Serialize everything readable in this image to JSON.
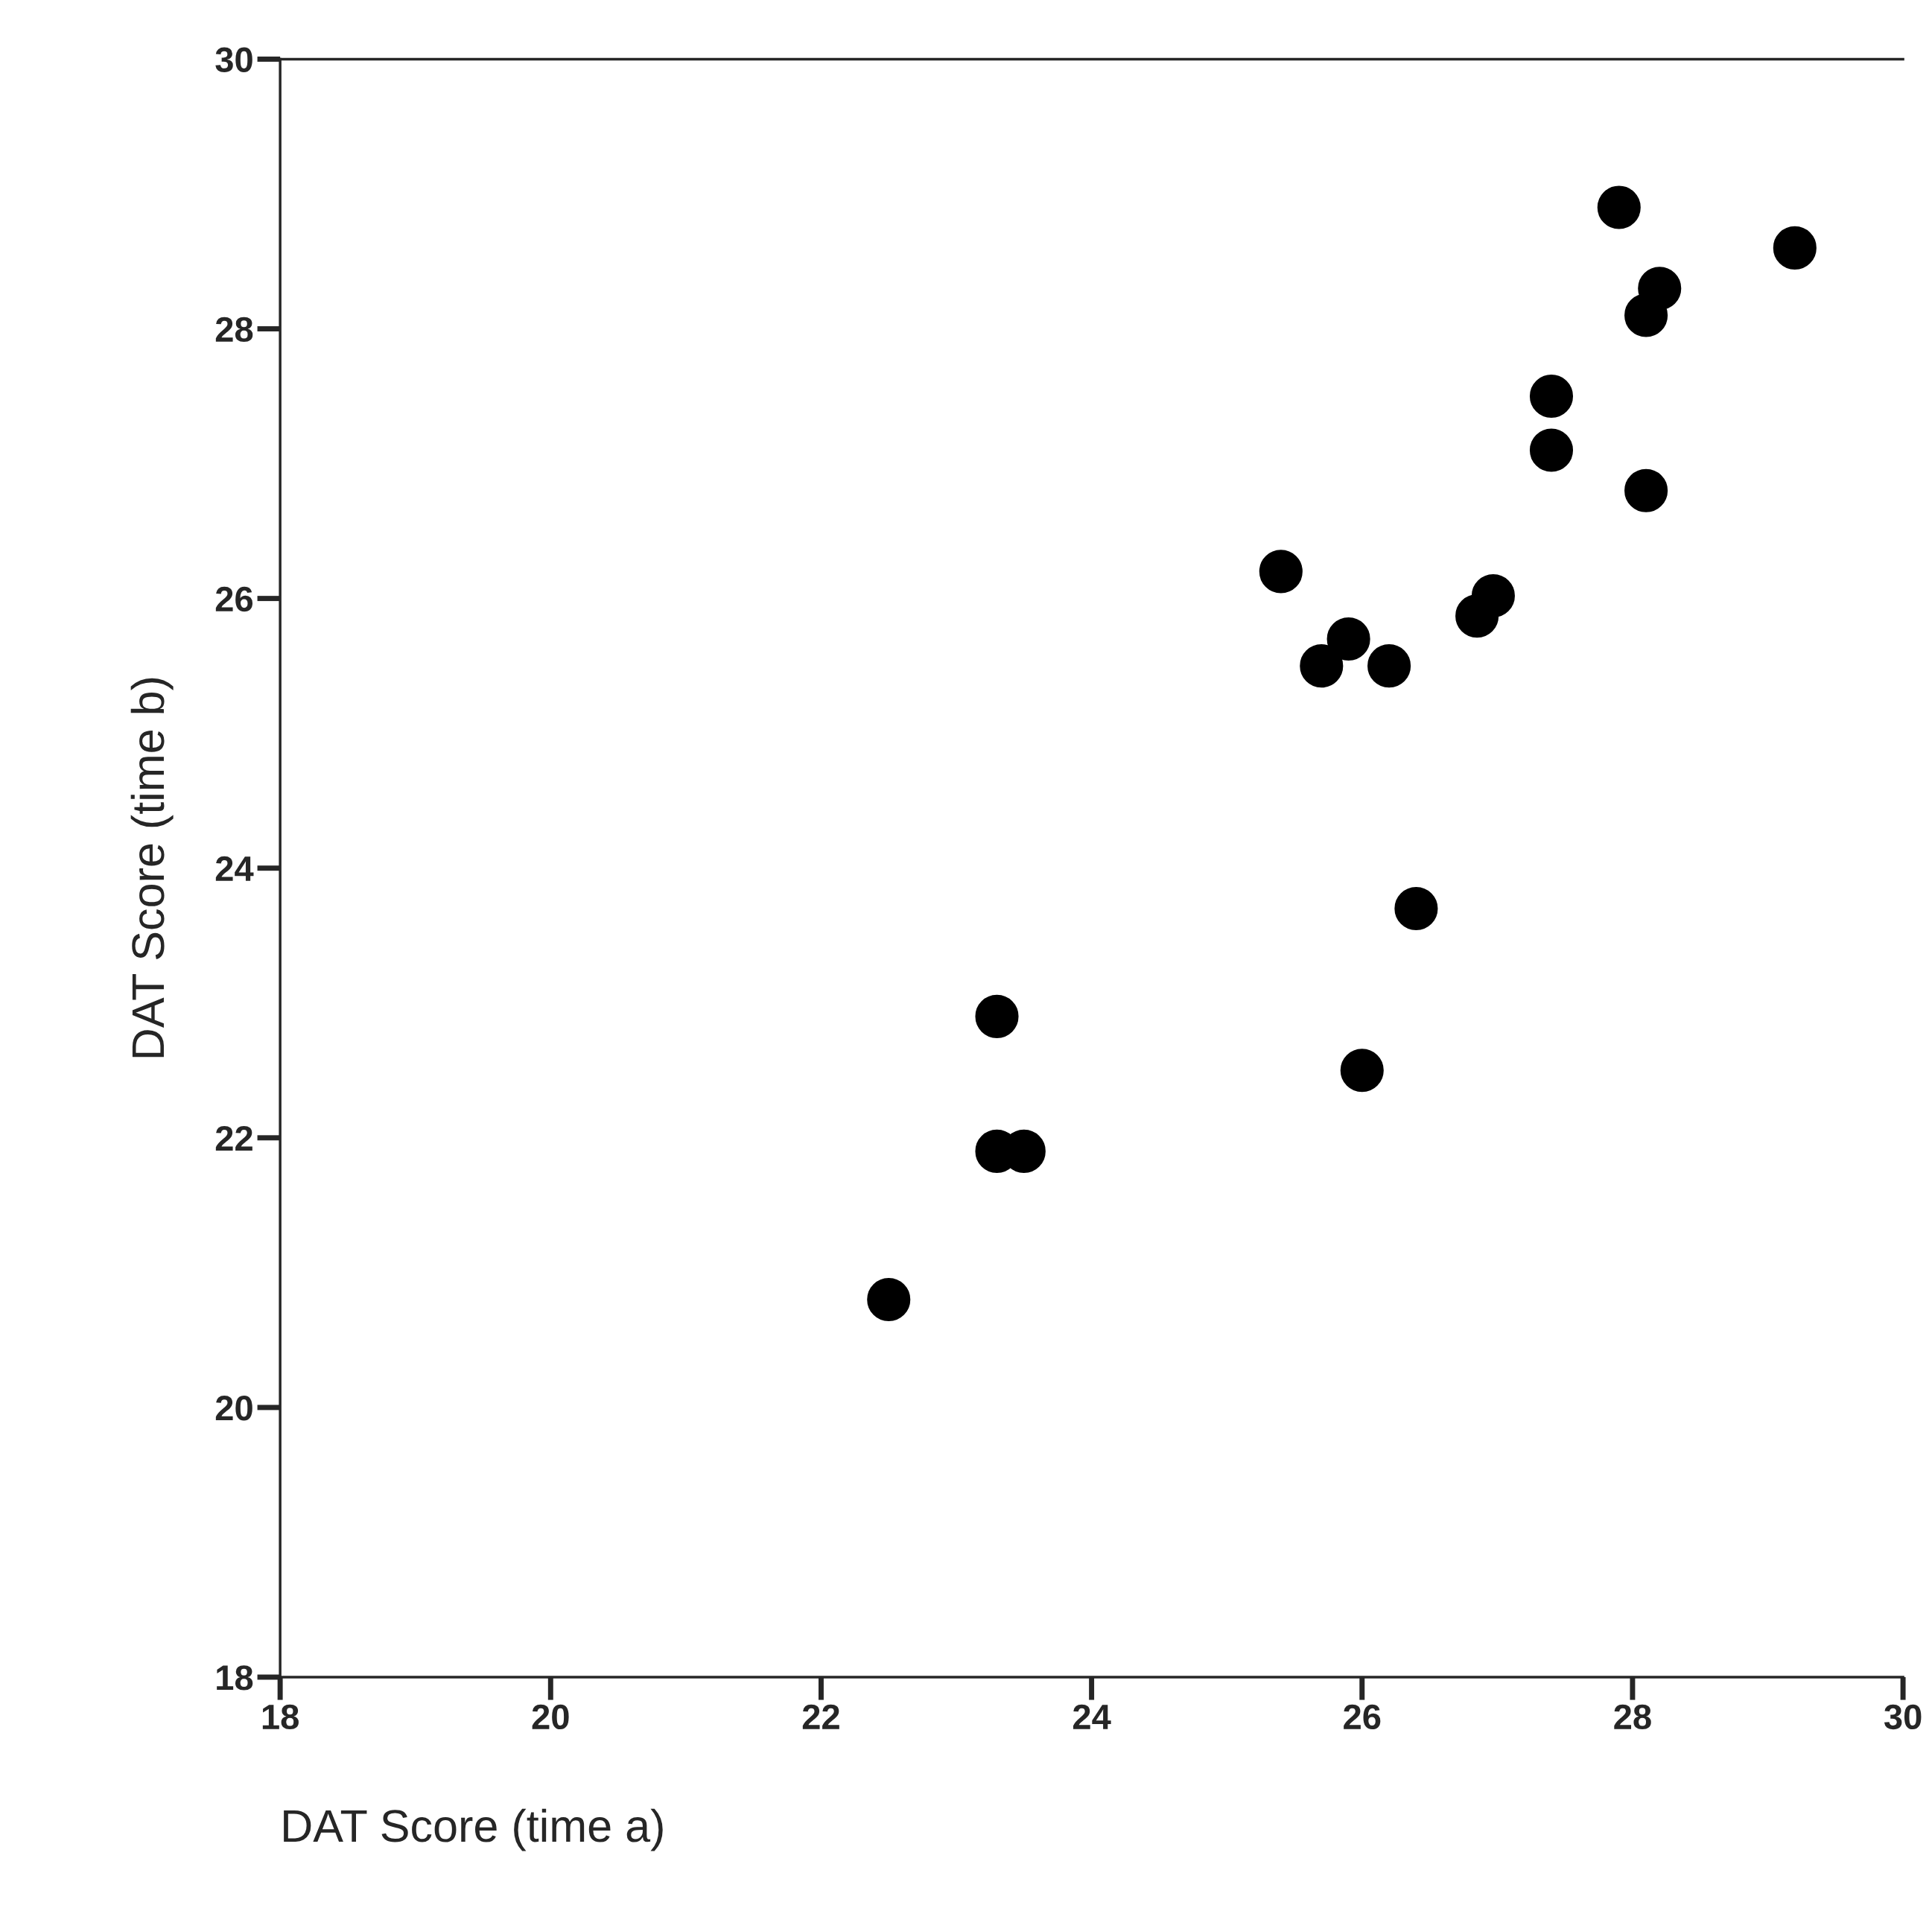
{
  "chart_data": {
    "type": "scatter",
    "xlabel": "DAT Score (time a)",
    "ylabel": "DAT Score (time b)",
    "x": [
      25.4,
      25.7,
      25.9,
      26.2,
      26.85,
      26.97,
      26.4,
      26.0,
      23.3,
      23.3,
      23.5,
      22.5,
      27.4,
      27.4,
      27.9,
      28.1,
      28.2,
      28.1,
      29.2
    ],
    "series": [
      {
        "color": "#000000",
        "values": [
          26.2,
          25.5,
          25.7,
          25.5,
          25.87,
          26.02,
          23.7,
          22.5,
          22.9,
          21.9,
          21.9,
          20.8,
          27.1,
          27.5,
          28.9,
          28.1,
          28.3,
          26.8,
          28.6
        ]
      }
    ],
    "xlim": [
      18,
      30
    ],
    "ylim": [
      18,
      30
    ],
    "xticks": [
      18,
      20,
      22,
      24,
      26,
      28,
      30
    ],
    "yticks": [
      18,
      20,
      22,
      24,
      26,
      28,
      30
    ],
    "grid": false,
    "marker": "circle"
  }
}
